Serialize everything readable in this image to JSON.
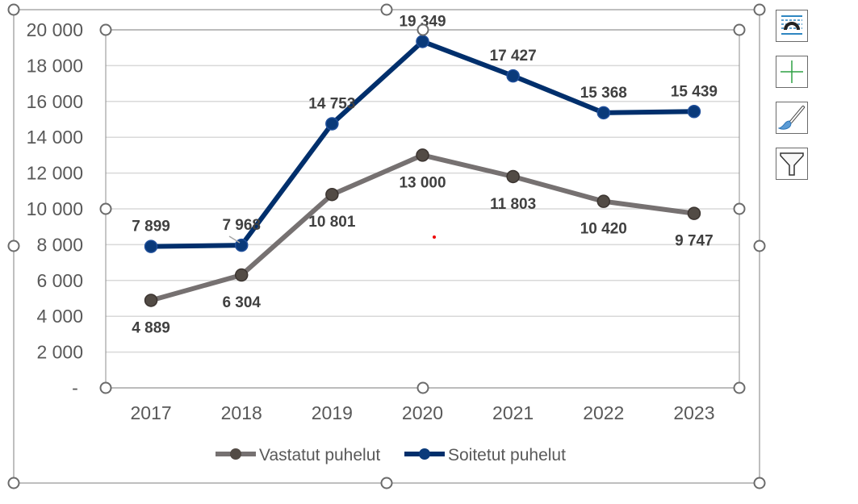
{
  "chart_data": {
    "type": "line",
    "categories": [
      "2017",
      "2018",
      "2019",
      "2020",
      "2021",
      "2022",
      "2023"
    ],
    "series": [
      {
        "name": "Vastatut puhelut",
        "color": "#767171",
        "marker_color": "#524b45",
        "values": [
          4889,
          6304,
          10801,
          13000,
          11803,
          10420,
          9747
        ],
        "labels": [
          "4 889",
          "6 304",
          "10 801",
          "13 000",
          "11 803",
          "10 420",
          "9 747"
        ]
      },
      {
        "name": "Soitetut puhelut",
        "color": "#002f6c",
        "marker_color": "#0a3a7a",
        "values": [
          7899,
          7968,
          14753,
          19349,
          17427,
          15368,
          15439
        ],
        "labels": [
          "7 899",
          "7 968",
          "14 753",
          "19 349",
          "17 427",
          "15 368",
          "15 439"
        ]
      }
    ],
    "ylim": [
      0,
      20000
    ],
    "yticks": [
      0,
      2000,
      4000,
      6000,
      8000,
      10000,
      12000,
      14000,
      16000,
      18000,
      20000
    ],
    "ytick_labels": [
      "-",
      "2 000",
      "4 000",
      "6 000",
      "8 000",
      "10 000",
      "12 000",
      "14 000",
      "16 000",
      "18 000",
      "20 000"
    ],
    "grid": true,
    "legend": "bottom"
  },
  "side_buttons": [
    {
      "name": "layout-options-icon"
    },
    {
      "name": "chart-elements-icon"
    },
    {
      "name": "chart-styles-icon"
    },
    {
      "name": "chart-filters-icon"
    }
  ]
}
